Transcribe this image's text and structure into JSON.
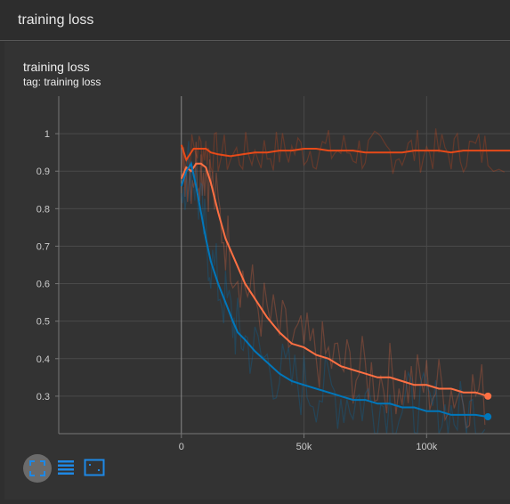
{
  "header": {
    "title": "training loss"
  },
  "card": {
    "title": "training loss",
    "tag": "tag: training loss"
  },
  "toolbar": {
    "fit_icon": "fit-domain-icon",
    "log_icon": "log-scale-icon",
    "box_icon": "zoom-box-icon"
  },
  "colors": {
    "background": "#333333",
    "grid": "#4a4a4a",
    "axis_text": "#cccccc",
    "series_orange": "#ff7043",
    "series_red": "#e64a19",
    "series_blue": "#0077bb",
    "button_accent": "#1e88e5"
  },
  "chart_data": {
    "type": "line",
    "title": "training loss",
    "subtitle": "tag: training loss",
    "xlabel": "",
    "ylabel": "",
    "x_ticks": [
      0,
      50000,
      100000
    ],
    "x_tick_labels": [
      "0",
      "50k",
      "100k"
    ],
    "y_ticks": [
      0.3,
      0.4,
      0.5,
      0.6,
      0.7,
      0.8,
      0.9,
      1
    ],
    "y_tick_labels": [
      "0.3",
      "0.4",
      "0.5",
      "0.6",
      "0.7",
      "0.8",
      "0.9",
      "1"
    ],
    "xlim": [
      -50000,
      134000
    ],
    "ylim": [
      0.2,
      1.1
    ],
    "grid": true,
    "legend": "none",
    "series": [
      {
        "color": "#e64a19",
        "x": [
          0,
          2000,
          5000,
          8000,
          10000,
          12000,
          15000,
          20000,
          25000,
          30000,
          35000,
          40000,
          45000,
          50000,
          55000,
          60000,
          65000,
          70000,
          75000,
          80000,
          85000,
          90000,
          95000,
          100000,
          105000,
          110000,
          115000,
          120000,
          125000,
          134000
        ],
        "y": [
          0.97,
          0.93,
          0.96,
          0.96,
          0.96,
          0.95,
          0.945,
          0.94,
          0.945,
          0.95,
          0.95,
          0.955,
          0.955,
          0.96,
          0.96,
          0.955,
          0.955,
          0.955,
          0.95,
          0.95,
          0.95,
          0.95,
          0.955,
          0.955,
          0.955,
          0.95,
          0.955,
          0.955,
          0.955,
          0.955
        ]
      },
      {
        "color": "#ff7043",
        "x": [
          0,
          2000,
          4000,
          6000,
          8000,
          10000,
          12000,
          15000,
          18000,
          22000,
          26000,
          30000,
          35000,
          40000,
          45000,
          50000,
          55000,
          60000,
          65000,
          70000,
          75000,
          80000,
          85000,
          90000,
          95000,
          100000,
          105000,
          110000,
          115000,
          120000,
          125000
        ],
        "y": [
          0.88,
          0.91,
          0.9,
          0.92,
          0.92,
          0.91,
          0.87,
          0.79,
          0.72,
          0.66,
          0.6,
          0.56,
          0.51,
          0.47,
          0.44,
          0.43,
          0.41,
          0.4,
          0.38,
          0.37,
          0.36,
          0.35,
          0.35,
          0.34,
          0.33,
          0.33,
          0.32,
          0.32,
          0.31,
          0.31,
          0.3
        ]
      },
      {
        "color": "#0077bb",
        "x": [
          0,
          2000,
          4000,
          6000,
          8000,
          10000,
          12000,
          15000,
          18000,
          21000,
          23000,
          26000,
          30000,
          35000,
          40000,
          45000,
          50000,
          55000,
          60000,
          65000,
          70000,
          75000,
          80000,
          85000,
          90000,
          95000,
          100000,
          105000,
          110000,
          115000,
          120000,
          125000
        ],
        "y": [
          0.86,
          0.9,
          0.92,
          0.86,
          0.79,
          0.72,
          0.66,
          0.6,
          0.55,
          0.5,
          0.47,
          0.45,
          0.42,
          0.39,
          0.36,
          0.34,
          0.33,
          0.32,
          0.31,
          0.3,
          0.29,
          0.29,
          0.28,
          0.28,
          0.27,
          0.27,
          0.26,
          0.26,
          0.25,
          0.25,
          0.25,
          0.245
        ]
      }
    ]
  }
}
